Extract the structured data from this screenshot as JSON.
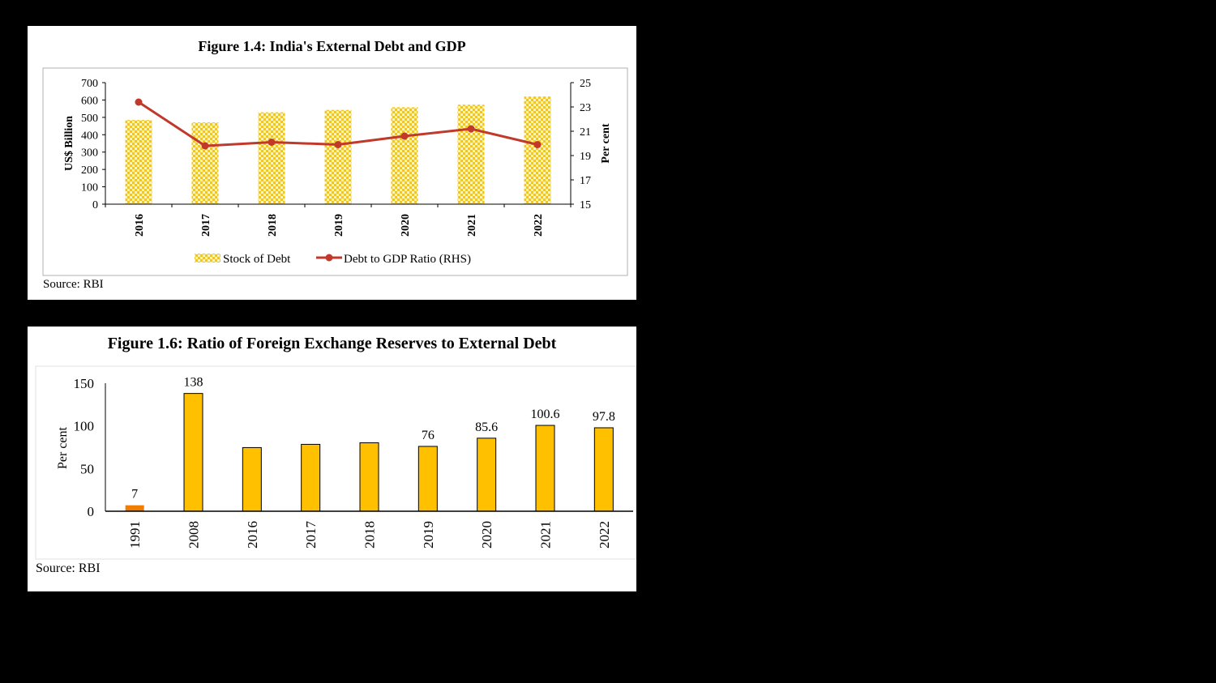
{
  "charts": [
    {
      "title": "Figure 1.4: India's External Debt and GDP",
      "source": "Source: RBI",
      "colors": {
        "bar": "#f5c518",
        "bar_check": "#fff3b0",
        "line": "#c0392b"
      }
    },
    {
      "title": "Figure 1.6: Ratio of Foreign Exchange Reserves to External Debt",
      "source": "Source: RBI",
      "colors": {
        "bar": "#ffc000",
        "bar_first": "#f07d00"
      }
    }
  ],
  "chart_data": [
    {
      "type": "bar",
      "categories": [
        "2016",
        "2017",
        "2018",
        "2019",
        "2020",
        "2021",
        "2022"
      ],
      "series": [
        {
          "name": "Stock of Debt",
          "type": "bar",
          "axis": "left",
          "values": [
            485,
            471,
            529,
            543,
            558,
            573,
            620
          ]
        },
        {
          "name": "Debt to GDP Ratio (RHS)",
          "type": "line",
          "axis": "right",
          "values": [
            23.4,
            19.8,
            20.1,
            19.9,
            20.6,
            21.2,
            19.9
          ]
        }
      ],
      "ylabel": "US$ Billion",
      "ylabel_right": "Per cent",
      "ylim": [
        0,
        700
      ],
      "ylim_right": [
        15,
        25
      ],
      "yticks": [
        "0",
        "100",
        "200",
        "300",
        "400",
        "500",
        "600",
        "700"
      ],
      "yticks_right": [
        "15",
        "17",
        "19",
        "21",
        "23",
        "25"
      ],
      "legend": "bottom"
    },
    {
      "type": "bar",
      "categories": [
        "1991",
        "2008",
        "2016",
        "2017",
        "2018",
        "2019",
        "2020",
        "2021",
        "2022"
      ],
      "values": [
        7,
        138,
        74.6,
        78.4,
        80.2,
        76,
        85.6,
        100.6,
        97.8
      ],
      "data_labels": [
        "7",
        "138",
        "",
        "",
        "",
        "76",
        "85.6",
        "100.6",
        "97.8"
      ],
      "ylabel": "Per cent",
      "ylim": [
        0,
        150
      ],
      "yticks": [
        "0",
        "50",
        "100",
        "150"
      ],
      "legend": "none"
    }
  ]
}
